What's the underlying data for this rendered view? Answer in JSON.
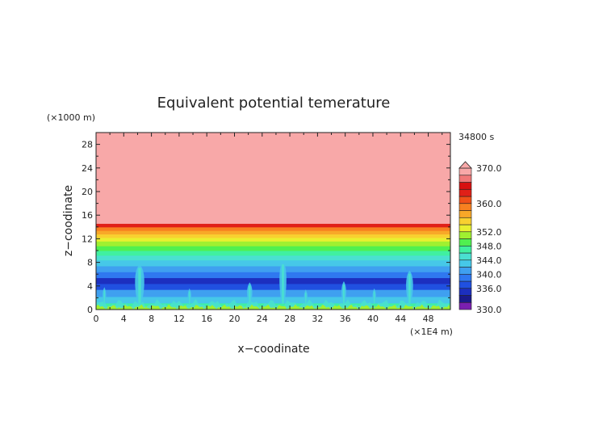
{
  "chart_data": {
    "type": "heatmap",
    "title": "Equivalent potential temerature",
    "xlabel": "x−coodinate",
    "ylabel": "z−coodinate",
    "x_unit": "(×1E4 m)",
    "y_unit": "(×1000 m)",
    "time_label": "34800 s",
    "xlim": [
      0,
      51.2
    ],
    "ylim": [
      0,
      30
    ],
    "x_ticks": [
      0,
      4,
      8,
      12,
      16,
      20,
      24,
      28,
      32,
      36,
      40,
      44,
      48
    ],
    "y_ticks": [
      0,
      4,
      8,
      12,
      16,
      20,
      24,
      28
    ],
    "grid": false,
    "colorbar": {
      "placement": "right",
      "levels": [
        330,
        332,
        334,
        336,
        338,
        340,
        342,
        344,
        346,
        348,
        350,
        352,
        354,
        356,
        358,
        360,
        362,
        364,
        366,
        368,
        370
      ],
      "colors": [
        "#7a1fb0",
        "#1a1a8c",
        "#1c2fbf",
        "#2050e0",
        "#2f78f0",
        "#3fa0f0",
        "#46c8e8",
        "#4ae0d0",
        "#40f0a0",
        "#50f050",
        "#a0f030",
        "#e8f030",
        "#f8d030",
        "#f8a828",
        "#f88020",
        "#f05018",
        "#e02018",
        "#d81010",
        "#f07878",
        "#f8a8a8"
      ],
      "labels": [
        "330.0",
        "336.0",
        "340.0",
        "344.0",
        "348.0",
        "352.0",
        "360.0",
        "370.0"
      ],
      "extend": "max"
    },
    "bands": [
      {
        "from": 0,
        "to": 0.3,
        "color": "#e8f030"
      },
      {
        "from": 0.3,
        "to": 0.6,
        "color": "#a0f030"
      },
      {
        "from": 0.6,
        "to": 1.1,
        "color": "#40f0a0"
      },
      {
        "from": 1.1,
        "to": 2.2,
        "color": "#46c8e8"
      },
      {
        "from": 2.2,
        "to": 3.4,
        "color": "#3fa0f0"
      },
      {
        "from": 3.4,
        "to": 4.4,
        "color": "#2050e0"
      },
      {
        "from": 4.4,
        "to": 5.4,
        "color": "#1c2fbf"
      },
      {
        "from": 5.4,
        "to": 6.4,
        "color": "#2f78f0"
      },
      {
        "from": 6.4,
        "to": 7.4,
        "color": "#3fa0f0"
      },
      {
        "from": 7.4,
        "to": 8.4,
        "color": "#46c8e8"
      },
      {
        "from": 8.4,
        "to": 9.2,
        "color": "#4ae0d0"
      },
      {
        "from": 9.2,
        "to": 10.0,
        "color": "#40f0a0"
      },
      {
        "from": 10.0,
        "to": 10.8,
        "color": "#50f050"
      },
      {
        "from": 10.8,
        "to": 11.6,
        "color": "#a0f030"
      },
      {
        "from": 11.6,
        "to": 12.2,
        "color": "#e8f030"
      },
      {
        "from": 12.2,
        "to": 12.8,
        "color": "#f8d030"
      },
      {
        "from": 12.8,
        "to": 13.4,
        "color": "#f8a828"
      },
      {
        "from": 13.4,
        "to": 14.0,
        "color": "#f88020"
      },
      {
        "from": 14.0,
        "to": 14.6,
        "color": "#e02018"
      },
      {
        "from": 14.6,
        "to": 30,
        "color": "#f8a8a8"
      }
    ],
    "plumes": [
      {
        "x": 1.2,
        "top": 3.8,
        "width": 0.6
      },
      {
        "x": 6.3,
        "top": 7.6,
        "width": 1.6
      },
      {
        "x": 13.5,
        "top": 3.6,
        "width": 0.6
      },
      {
        "x": 22.2,
        "top": 4.6,
        "width": 0.9
      },
      {
        "x": 27.0,
        "top": 8.2,
        "width": 1.2
      },
      {
        "x": 30.3,
        "top": 3.4,
        "width": 0.6
      },
      {
        "x": 35.8,
        "top": 4.8,
        "width": 0.8
      },
      {
        "x": 40.2,
        "top": 3.6,
        "width": 0.6
      },
      {
        "x": 45.3,
        "top": 6.6,
        "width": 1.2
      }
    ]
  }
}
